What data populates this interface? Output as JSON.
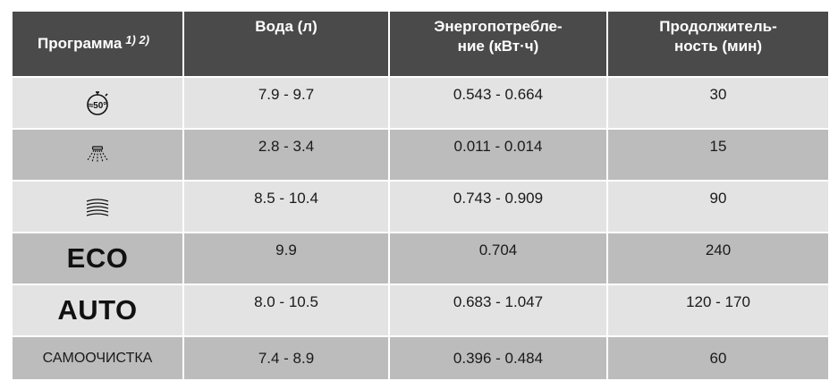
{
  "table": {
    "headers": {
      "program": "Программа",
      "footnote": "1) 2)",
      "water": "Вода (л)",
      "energy": "Энергопотребле-ние (кВт·ч)",
      "duration": "Продолжитель-ность (мин)"
    },
    "rows": [
      {
        "program_icon": "quick-50-stopwatch-icon",
        "program_label": "",
        "icon_text": "≈50°",
        "water": "7.9 - 9.7",
        "energy": "0.543 - 0.664",
        "duration": "30"
      },
      {
        "program_icon": "rinse-spray-icon",
        "program_label": "",
        "water": "2.8 - 3.4",
        "energy": "0.011 - 0.014",
        "duration": "15"
      },
      {
        "program_icon": "intensive-wave-icon",
        "program_label": "",
        "water": "8.5 - 10.4",
        "energy": "0.743 - 0.909",
        "duration": "90"
      },
      {
        "program_label": "ECO",
        "water": "9.9",
        "energy": "0.704",
        "duration": "240"
      },
      {
        "program_label": "AUTO",
        "water": "8.0 - 10.5",
        "energy": "0.683 - 1.047",
        "duration": "120 - 170"
      },
      {
        "program_label": "САМООЧИСТКА",
        "water": "7.4 - 8.9",
        "energy": "0.396 - 0.484",
        "duration": "60"
      }
    ]
  }
}
